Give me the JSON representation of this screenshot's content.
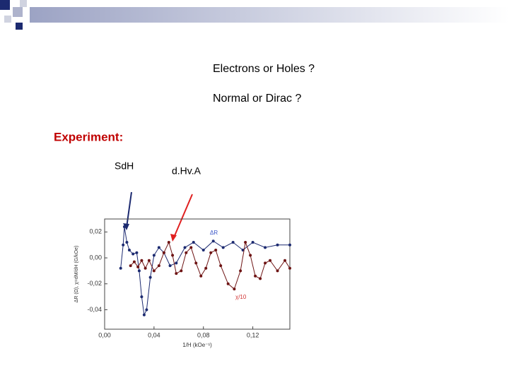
{
  "slide": {
    "question_1": "Electrons or Holes ?",
    "question_2": "Normal or Dirac ?",
    "heading": "Experiment:",
    "arrow_label_1": "SdH",
    "arrow_label_2": "d.Hv.A"
  },
  "chart_data": {
    "type": "line",
    "x_label": "1/H (kOe⁻¹)",
    "y_label": "ΔR (Ω), χ=dM/dH (G/kOe)",
    "annotations": [
      "ΔR",
      "χ/10"
    ],
    "xlim": [
      0,
      0.15
    ],
    "ylim": [
      -0.055,
      0.03
    ],
    "xticks": [
      {
        "value": 0,
        "label": "0,00"
      },
      {
        "value": 0.04,
        "label": "0,04"
      },
      {
        "value": 0.08,
        "label": "0,08"
      },
      {
        "value": 0.12,
        "label": "0,12"
      }
    ],
    "yticks": [
      {
        "value": -0.04,
        "label": "-0,04"
      },
      {
        "value": -0.02,
        "label": "-0,02"
      },
      {
        "value": 0,
        "label": "0,00"
      },
      {
        "value": 0.02,
        "label": "0,02"
      }
    ],
    "series": [
      {
        "color": "#1c2a70",
        "x": [
          0.013,
          0.015,
          0.016,
          0.018,
          0.02,
          0.023,
          0.026,
          0.028,
          0.03,
          0.032,
          0.034,
          0.037,
          0.04,
          0.044,
          0.048,
          0.053,
          0.058,
          0.065,
          0.072,
          0.08,
          0.088,
          0.096,
          0.104,
          0.112,
          0.12,
          0.13,
          0.14,
          0.15
        ],
        "values": [
          -0.008,
          0.01,
          0.024,
          0.012,
          0.006,
          0.003,
          0.004,
          -0.01,
          -0.03,
          -0.044,
          -0.04,
          -0.015,
          0.002,
          0.008,
          0.004,
          -0.006,
          -0.004,
          0.008,
          0.012,
          0.006,
          0.013,
          0.008,
          0.012,
          0.006,
          0.012,
          0.008,
          0.01,
          0.01
        ]
      },
      {
        "color": "#6e1414",
        "x": [
          0.021,
          0.024,
          0.027,
          0.03,
          0.033,
          0.036,
          0.04,
          0.044,
          0.048,
          0.052,
          0.055,
          0.058,
          0.062,
          0.066,
          0.07,
          0.074,
          0.078,
          0.082,
          0.086,
          0.09,
          0.094,
          0.1,
          0.105,
          0.11,
          0.114,
          0.118,
          0.122,
          0.126,
          0.13,
          0.134,
          0.14,
          0.146,
          0.15
        ],
        "values": [
          -0.006,
          -0.003,
          -0.007,
          -0.002,
          -0.008,
          -0.002,
          -0.01,
          -0.006,
          0.004,
          0.012,
          0.002,
          -0.012,
          -0.01,
          0.004,
          0.008,
          -0.004,
          -0.014,
          -0.008,
          0.004,
          0.006,
          -0.006,
          -0.02,
          -0.024,
          -0.01,
          0.012,
          0.002,
          -0.014,
          -0.016,
          -0.004,
          -0.002,
          -0.01,
          -0.002,
          -0.008
        ]
      }
    ]
  }
}
